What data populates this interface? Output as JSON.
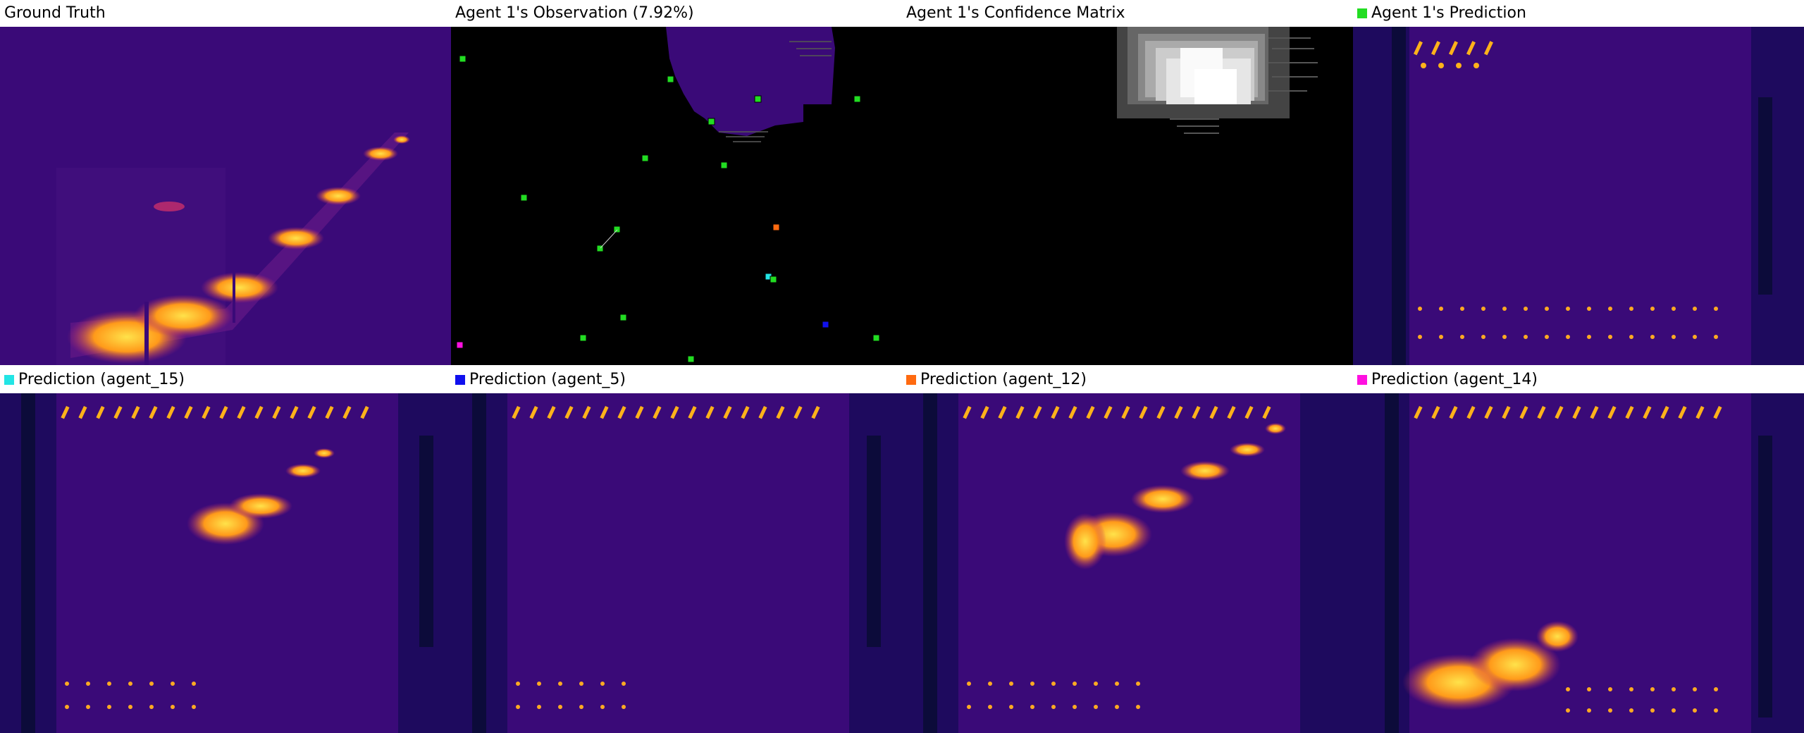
{
  "panels": [
    {
      "id": "ground-truth",
      "title": "Ground Truth",
      "marker": null
    },
    {
      "id": "agent1-observation",
      "title": "Agent 1's Observation (7.92%)",
      "marker": null
    },
    {
      "id": "agent1-confidence",
      "title": "Agent 1's Confidence Matrix",
      "marker": null
    },
    {
      "id": "agent1-prediction",
      "title": "Agent 1's Prediction",
      "marker": "#22dd22"
    },
    {
      "id": "prediction-agent15",
      "title": "Prediction (agent_15)",
      "marker": "#22e5e5"
    },
    {
      "id": "prediction-agent5",
      "title": "Prediction (agent_5)",
      "marker": "#1010ee"
    },
    {
      "id": "prediction-agent12",
      "title": "Prediction (agent_12)",
      "marker": "#ff6a10"
    },
    {
      "id": "prediction-agent14",
      "title": "Prediction (agent_14)",
      "marker": "#ff10e0"
    }
  ],
  "colors": {
    "background_purple": "#3a0a78",
    "hot_yellow": "#ffd23a",
    "hot_orange": "#ff8a1a",
    "dark_band": "#0c0b3a",
    "observation_black": "#000000",
    "agent_green": "#22dd22",
    "agent_cyan": "#22e5e5",
    "agent_blue": "#1010ee",
    "agent_orange": "#ff6a10",
    "agent_magenta": "#ff10e0"
  }
}
